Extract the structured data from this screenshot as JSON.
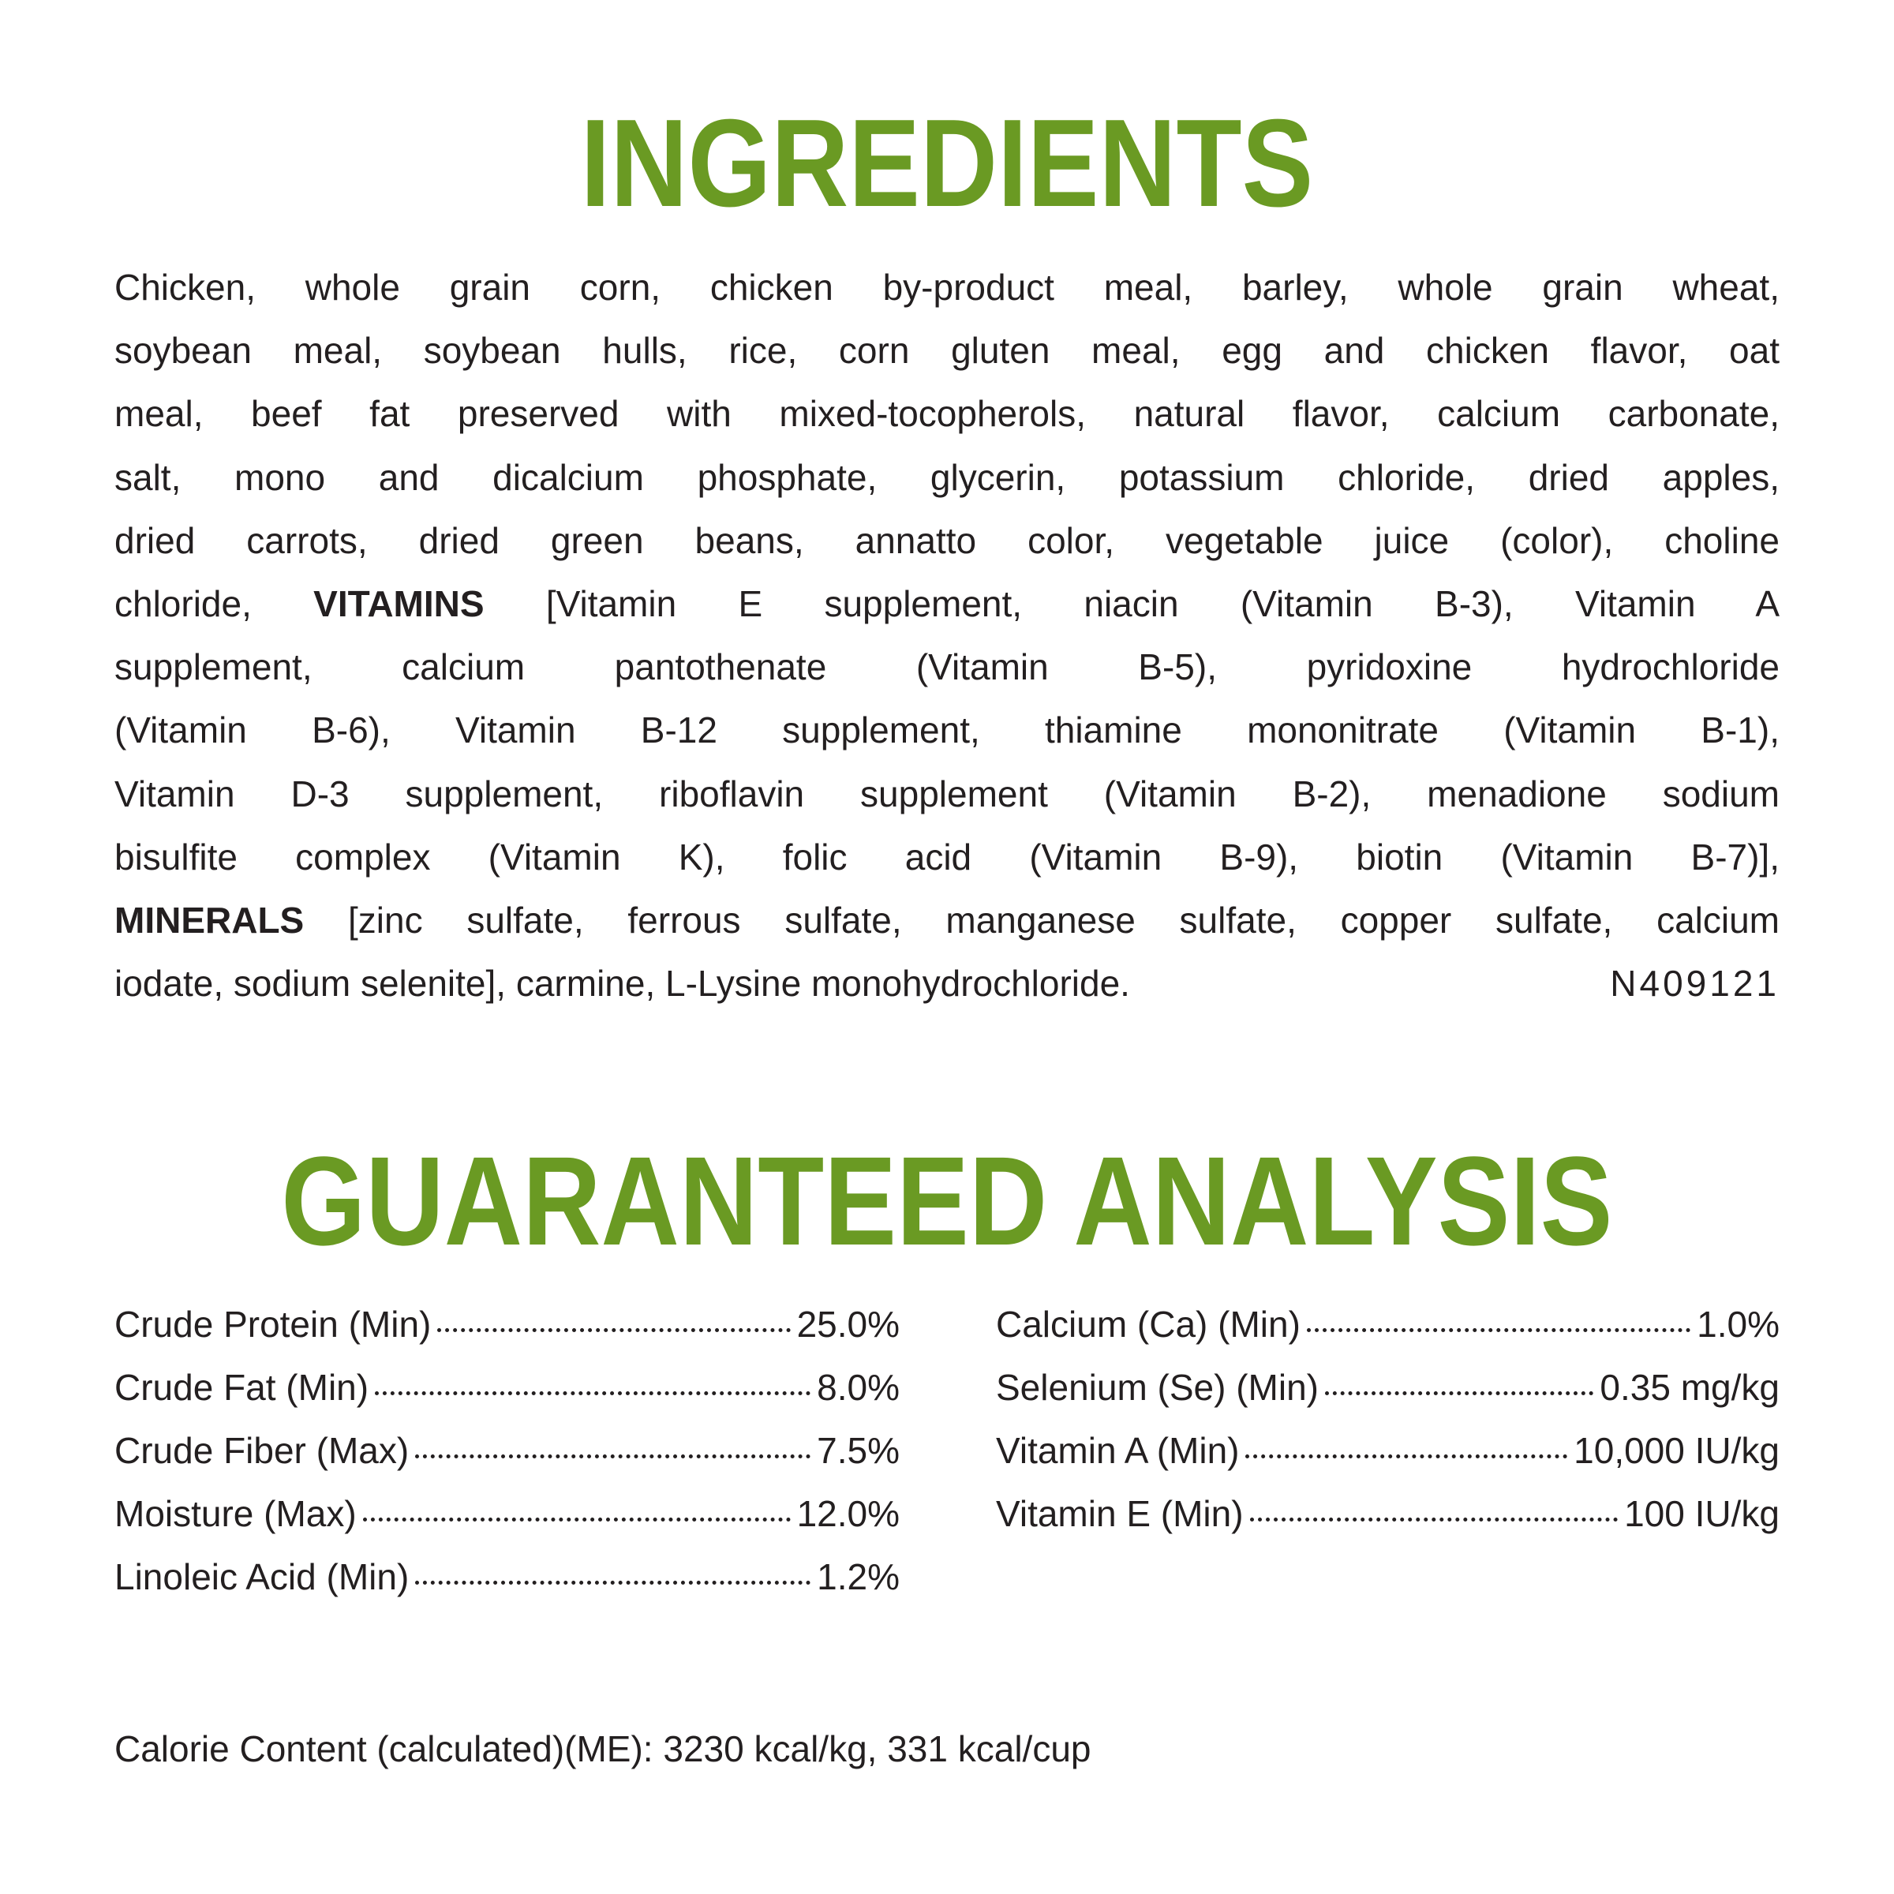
{
  "accent_color": "#6a9a23",
  "ingredients": {
    "title": "INGREDIENTS",
    "lines": [
      [
        "Chicken, whole grain corn, chicken by-product meal, barley, whole grain wheat,"
      ],
      [
        "soybean meal, soybean hulls, rice, corn gluten meal, egg and chicken flavor, oat"
      ],
      [
        "meal, beef fat preserved with mixed-tocopherols, natural flavor, calcium carbonate,"
      ],
      [
        "salt, mono and dicalcium phosphate, glycerin, potassium chloride, dried apples,"
      ],
      [
        "dried carrots, dried green beans, annatto color, vegetable juice (color), choline"
      ],
      [
        "chloride, ",
        "VITAMINS",
        " [Vitamin E supplement, niacin (Vitamin B-3), Vitamin A"
      ],
      [
        "supplement, calcium pantothenate (Vitamin B-5), pyridoxine hydrochloride"
      ],
      [
        "(Vitamin B-6), Vitamin B-12 supplement, thiamine mononitrate (Vitamin B-1),"
      ],
      [
        "Vitamin D-3 supplement, riboflavin supplement (Vitamin B-2), menadione sodium"
      ],
      [
        "bisulfite complex (Vitamin K), folic acid (Vitamin B-9), biotin (Vitamin B-7)],"
      ],
      [
        "MINERALS",
        " [zinc sulfate, ferrous sulfate, manganese sulfate, copper sulfate, calcium"
      ]
    ],
    "last_line": "iodate, sodium selenite], carmine, L-Lysine monohydrochloride.",
    "code": "N409121"
  },
  "analysis": {
    "title": "GUARANTEED ANALYSIS",
    "left": [
      {
        "label": "Crude Protein (Min)",
        "value": "25.0%"
      },
      {
        "label": "Crude Fat (Min)",
        "value": "8.0%"
      },
      {
        "label": "Crude Fiber (Max)",
        "value": "7.5%"
      },
      {
        "label": "Moisture (Max)",
        "value": "12.0%"
      },
      {
        "label": "Linoleic Acid (Min)",
        "value": "1.2%"
      }
    ],
    "right": [
      {
        "label": "Calcium (Ca) (Min)",
        "value": "1.0%"
      },
      {
        "label": "Selenium (Se) (Min)",
        "value": "0.35 mg/kg"
      },
      {
        "label": "Vitamin A (Min)",
        "value": "10,000 IU/kg"
      },
      {
        "label": "Vitamin E (Min)",
        "value": "100 IU/kg"
      }
    ],
    "calorie": "Calorie Content (calculated)(ME): 3230 kcal/kg, 331 kcal/cup"
  }
}
